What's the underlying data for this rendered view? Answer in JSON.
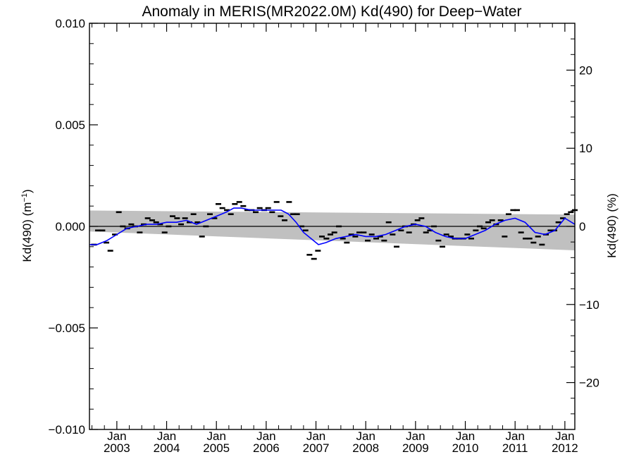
{
  "chart_data": {
    "type": "scatter",
    "title": "Anomaly in MERIS(MR2022.0M) Kd(490) for Deep−Water",
    "ylabel_left": "Kd(490) (m",
    "ylabel_left_sup": "−1",
    "ylabel_left_close": ")",
    "ylabel_right": "Kd(490) (%)",
    "x_range": [
      2002.45,
      2012.2
    ],
    "y_left_range": [
      -0.01,
      0.01
    ],
    "y_right_range": [
      -26,
      26
    ],
    "x_ticks": [
      {
        "value": 2003.0,
        "label_top": "Jan",
        "label_bottom": "2003"
      },
      {
        "value": 2004.0,
        "label_top": "Jan",
        "label_bottom": "2004"
      },
      {
        "value": 2005.0,
        "label_top": "Jan",
        "label_bottom": "2005"
      },
      {
        "value": 2006.0,
        "label_top": "Jan",
        "label_bottom": "2006"
      },
      {
        "value": 2007.0,
        "label_top": "Jan",
        "label_bottom": "2007"
      },
      {
        "value": 2008.0,
        "label_top": "Jan",
        "label_bottom": "2008"
      },
      {
        "value": 2009.0,
        "label_top": "Jan",
        "label_bottom": "2009"
      },
      {
        "value": 2010.0,
        "label_top": "Jan",
        "label_bottom": "2010"
      },
      {
        "value": 2011.0,
        "label_top": "Jan",
        "label_bottom": "2011"
      },
      {
        "value": 2012.0,
        "label_top": "Jan",
        "label_bottom": "2012"
      }
    ],
    "y_left_ticks": [
      {
        "value": 0.01,
        "label": "0.010"
      },
      {
        "value": 0.005,
        "label": "0.005"
      },
      {
        "value": 0.0,
        "label": "0.000"
      },
      {
        "value": -0.005,
        "label": "−0.005"
      },
      {
        "value": -0.01,
        "label": "−0.010"
      }
    ],
    "y_right_ticks": [
      {
        "value": 20,
        "label": "20"
      },
      {
        "value": 10,
        "label": "10"
      },
      {
        "value": 0,
        "label": "0"
      },
      {
        "value": -10,
        "label": "−10"
      },
      {
        "value": -20,
        "label": "−20"
      }
    ],
    "confidence_band": {
      "x": [
        2002.45,
        2012.2
      ],
      "upper": [
        0.00078,
        0.00058
      ],
      "lower": [
        -0.00025,
        -0.00118
      ]
    },
    "zero_line": 0.0,
    "monthly_anomalies": {
      "name": "monthly anomaly",
      "x": [
        2002.54,
        2002.62,
        2002.71,
        2002.79,
        2002.87,
        2002.96,
        2003.04,
        2003.12,
        2003.21,
        2003.29,
        2003.37,
        2003.46,
        2003.54,
        2003.62,
        2003.71,
        2003.79,
        2003.87,
        2003.96,
        2004.04,
        2004.12,
        2004.21,
        2004.29,
        2004.37,
        2004.46,
        2004.54,
        2004.62,
        2004.71,
        2004.79,
        2004.87,
        2004.96,
        2005.04,
        2005.12,
        2005.21,
        2005.29,
        2005.37,
        2005.46,
        2005.54,
        2005.62,
        2005.71,
        2005.79,
        2005.87,
        2005.96,
        2006.04,
        2006.12,
        2006.21,
        2006.29,
        2006.37,
        2006.46,
        2006.54,
        2006.62,
        2006.71,
        2006.79,
        2006.87,
        2006.96,
        2007.04,
        2007.12,
        2007.21,
        2007.29,
        2007.37,
        2007.46,
        2007.54,
        2007.62,
        2007.71,
        2007.79,
        2007.87,
        2007.96,
        2008.04,
        2008.12,
        2008.21,
        2008.29,
        2008.37,
        2008.46,
        2008.54,
        2008.62,
        2008.71,
        2008.79,
        2008.87,
        2008.96,
        2009.04,
        2009.12,
        2009.21,
        2009.29,
        2009.37,
        2009.46,
        2009.54,
        2009.62,
        2009.71,
        2009.79,
        2009.87,
        2009.96,
        2010.04,
        2010.12,
        2010.21,
        2010.29,
        2010.37,
        2010.46,
        2010.54,
        2010.62,
        2010.71,
        2010.79,
        2010.87,
        2010.96,
        2011.04,
        2011.12,
        2011.21,
        2011.29,
        2011.37,
        2011.46,
        2011.54,
        2011.62,
        2011.71,
        2011.79,
        2011.87,
        2011.96,
        2012.04,
        2012.12,
        2012.2
      ],
      "y": [
        -0.0009,
        -0.0002,
        -0.0002,
        -0.0008,
        -0.0012,
        -0.0004,
        0.0007,
        0.0,
        -0.0001,
        0.0001,
        0.0,
        -0.0003,
        0.0001,
        0.0004,
        0.0003,
        0.0002,
        0.0001,
        -0.0003,
        0.0,
        0.0005,
        0.0004,
        0.0001,
        0.0004,
        0.0002,
        0.0006,
        0.0002,
        -0.0005,
        0.0,
        0.0006,
        0.0004,
        0.0011,
        0.0009,
        0.0008,
        0.0006,
        0.0011,
        0.0012,
        0.001,
        0.0008,
        0.0008,
        0.0007,
        0.0009,
        0.0008,
        0.0009,
        0.0007,
        0.0012,
        0.0005,
        0.0003,
        0.0012,
        0.0006,
        0.0006,
        0.0,
        -0.0002,
        -0.0014,
        -0.0016,
        -0.0012,
        -0.0005,
        -0.0006,
        -0.0004,
        -0.0003,
        0.0,
        -0.0006,
        -0.0008,
        -0.0004,
        -0.0005,
        -0.0003,
        -0.0003,
        -0.0007,
        -0.0004,
        -0.0006,
        -0.0005,
        -0.0007,
        0.0002,
        -0.0004,
        -0.001,
        -0.0002,
        0.0,
        -0.0003,
        0.0001,
        0.0003,
        0.0004,
        -0.0003,
        -0.0002,
        0.0,
        -0.0007,
        -0.001,
        -0.0004,
        -0.0005,
        -0.0006,
        -0.0006,
        -0.0006,
        -0.0004,
        -0.0006,
        -0.0002,
        0.0,
        -0.0001,
        0.0002,
        0.0003,
        0.0001,
        0.0003,
        -0.0005,
        0.0006,
        0.0008,
        0.0008,
        -0.0003,
        -0.0006,
        -0.0006,
        -0.0008,
        -0.0005,
        -0.0009,
        -0.0004,
        -0.0002,
        -0.0002,
        0.0002,
        0.0004,
        0.0006,
        0.0007,
        0.0008
      ]
    },
    "running_mean": {
      "name": "running mean",
      "x": [
        2002.45,
        2002.6,
        2002.8,
        2003.0,
        2003.2,
        2003.4,
        2003.6,
        2003.8,
        2004.0,
        2004.2,
        2004.4,
        2004.6,
        2004.8,
        2005.0,
        2005.2,
        2005.35,
        2005.5,
        2005.7,
        2005.9,
        2006.1,
        2006.3,
        2006.45,
        2006.6,
        2006.75,
        2006.9,
        2007.05,
        2007.2,
        2007.4,
        2007.6,
        2007.8,
        2008.0,
        2008.2,
        2008.4,
        2008.6,
        2008.8,
        2009.0,
        2009.2,
        2009.4,
        2009.6,
        2009.8,
        2010.0,
        2010.2,
        2010.4,
        2010.6,
        2010.8,
        2011.0,
        2011.2,
        2011.4,
        2011.6,
        2011.8,
        2012.0,
        2012.2
      ],
      "y": [
        -0.0009,
        -0.0009,
        -0.0007,
        -0.0004,
        -0.0001,
        0.0,
        0.0001,
        0.0001,
        0.0002,
        0.0002,
        0.0003,
        0.0001,
        0.0003,
        0.0005,
        0.0007,
        0.0009,
        0.0009,
        0.0008,
        0.0008,
        0.0008,
        0.0008,
        0.0006,
        0.0002,
        -0.0003,
        -0.0006,
        -0.0009,
        -0.0008,
        -0.0006,
        -0.0005,
        -0.0004,
        -0.0005,
        -0.0005,
        -0.0004,
        -0.0002,
        0.0,
        0.0001,
        0.0,
        -0.0003,
        -0.0005,
        -0.0006,
        -0.0006,
        -0.0004,
        -0.0002,
        0.0001,
        0.0003,
        0.0004,
        0.0002,
        -0.0003,
        -0.0004,
        -0.0002,
        0.0004,
        0.0001
      ]
    },
    "colors": {
      "band": "#c0c0c0",
      "running_mean": "#0000ff",
      "markers": "#000000",
      "axes": "#000000"
    },
    "grid": false,
    "legend": "none"
  }
}
